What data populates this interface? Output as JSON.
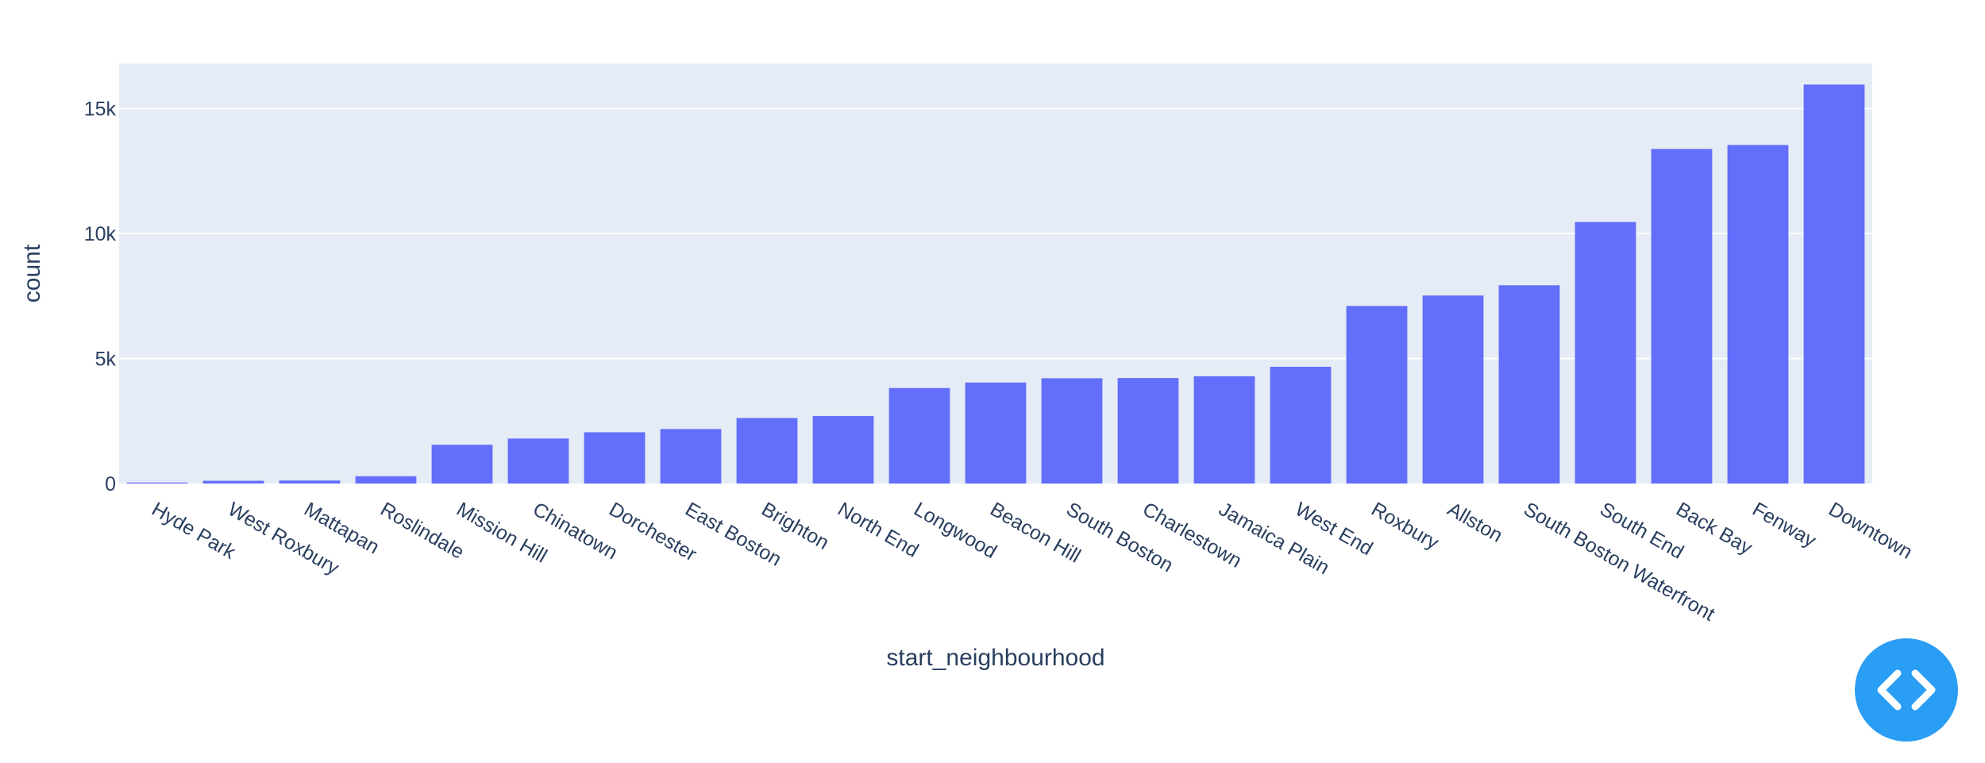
{
  "chart_data": {
    "type": "bar",
    "xlabel": "start_neighbourhood",
    "ylabel": "count",
    "categories": [
      "Hyde Park",
      "West Roxbury",
      "Mattapan",
      "Roslindale",
      "Mission Hill",
      "Chinatown",
      "Dorchester",
      "East Boston",
      "Brighton",
      "North End",
      "Longwood",
      "Beacon Hill",
      "South Boston",
      "Charlestown",
      "Jamaica Plain",
      "West End",
      "Roxbury",
      "Allston",
      "South Boston Waterfront",
      "South End",
      "Back Bay",
      "Fenway",
      "Downtown"
    ],
    "values": [
      40,
      110,
      120,
      290,
      1550,
      1800,
      2050,
      2180,
      2620,
      2700,
      3820,
      4040,
      4210,
      4220,
      4290,
      4670,
      7100,
      7520,
      7930,
      10460,
      13380,
      13540,
      15960
    ],
    "ylim": [
      0,
      16800
    ],
    "yticks": [
      0,
      5000,
      10000,
      15000
    ],
    "ytick_labels": [
      "0",
      "5k",
      "10k",
      "15k"
    ],
    "bar_color": "#636efa",
    "plot_bg": "#e5ecf6",
    "grid": true
  },
  "controls": {
    "code_toggle_icon": "code-brackets-icon",
    "code_toggle_color": "#2a9df4"
  }
}
